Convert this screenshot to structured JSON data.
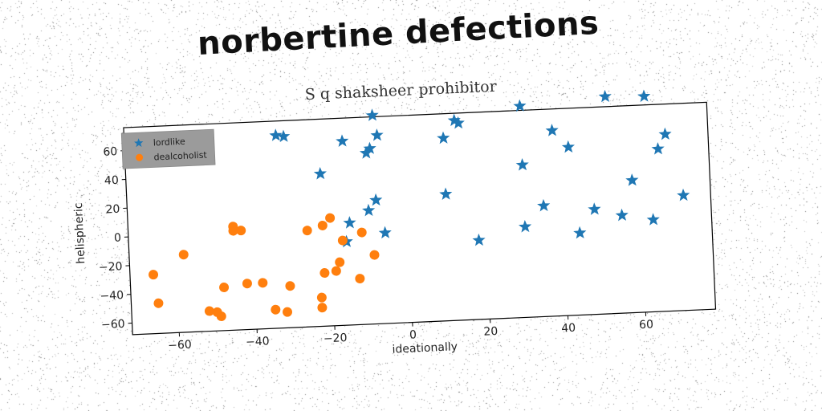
{
  "header": {
    "title": "norbertine defections"
  },
  "chart_data": {
    "type": "scatter",
    "title": "S q shaksheer prohibitor",
    "xlabel": "ideationally",
    "ylabel": "helispheric",
    "xlim": [
      -72,
      78
    ],
    "ylim": [
      -68,
      76
    ],
    "xticks": [
      -60,
      -40,
      -20,
      0,
      20,
      40,
      60
    ],
    "yticks": [
      -60,
      -40,
      -20,
      0,
      20,
      40,
      60
    ],
    "grid": false,
    "legend_position": "top-left",
    "series": [
      {
        "name": "lordlike",
        "marker": "star",
        "color": "#1f77b4",
        "points": [
          [
            -33,
            66
          ],
          [
            -31,
            65
          ],
          [
            -22,
            38
          ],
          [
            -16,
            60
          ],
          [
            -10,
            51
          ],
          [
            -9,
            54
          ],
          [
            -8,
            77
          ],
          [
            -7,
            63
          ],
          [
            -10,
            11
          ],
          [
            -8,
            18
          ],
          [
            -15,
            3
          ],
          [
            -16,
            -10
          ],
          [
            -6,
            -5
          ],
          [
            10,
            59
          ],
          [
            13,
            71
          ],
          [
            14,
            69
          ],
          [
            10,
            20
          ],
          [
            18,
            -13
          ],
          [
            30,
            79
          ],
          [
            30,
            38
          ],
          [
            30,
            -5
          ],
          [
            35,
            9
          ],
          [
            38,
            61
          ],
          [
            42,
            49
          ],
          [
            44,
            -11
          ],
          [
            48,
            5
          ],
          [
            52,
            83
          ],
          [
            55,
            0
          ],
          [
            58,
            24
          ],
          [
            62,
            82
          ],
          [
            63,
            -4
          ],
          [
            65,
            45
          ],
          [
            67,
            55
          ],
          [
            71,
            12
          ]
        ]
      },
      {
        "name": "dealcoholist",
        "marker": "circle",
        "color": "#ff7f0e",
        "points": [
          [
            -66,
            -27
          ],
          [
            -65,
            -47
          ],
          [
            -58,
            -14
          ],
          [
            -52,
            -54
          ],
          [
            -50,
            -55
          ],
          [
            -49,
            -58
          ],
          [
            -48,
            -38
          ],
          [
            -45,
            4
          ],
          [
            -45,
            1
          ],
          [
            -43,
            1
          ],
          [
            -42,
            -36
          ],
          [
            -38,
            -36
          ],
          [
            -35,
            -55
          ],
          [
            -32,
            -57
          ],
          [
            -31,
            -39
          ],
          [
            -26,
            -1
          ],
          [
            -23,
            -48
          ],
          [
            -23,
            -55
          ],
          [
            -22,
            2
          ],
          [
            -22,
            -31
          ],
          [
            -20,
            7
          ],
          [
            -19,
            -30
          ],
          [
            -18,
            -24
          ],
          [
            -17,
            -9
          ],
          [
            -13,
            -36
          ],
          [
            -12,
            -4
          ],
          [
            -9,
            -20
          ]
        ]
      }
    ]
  }
}
